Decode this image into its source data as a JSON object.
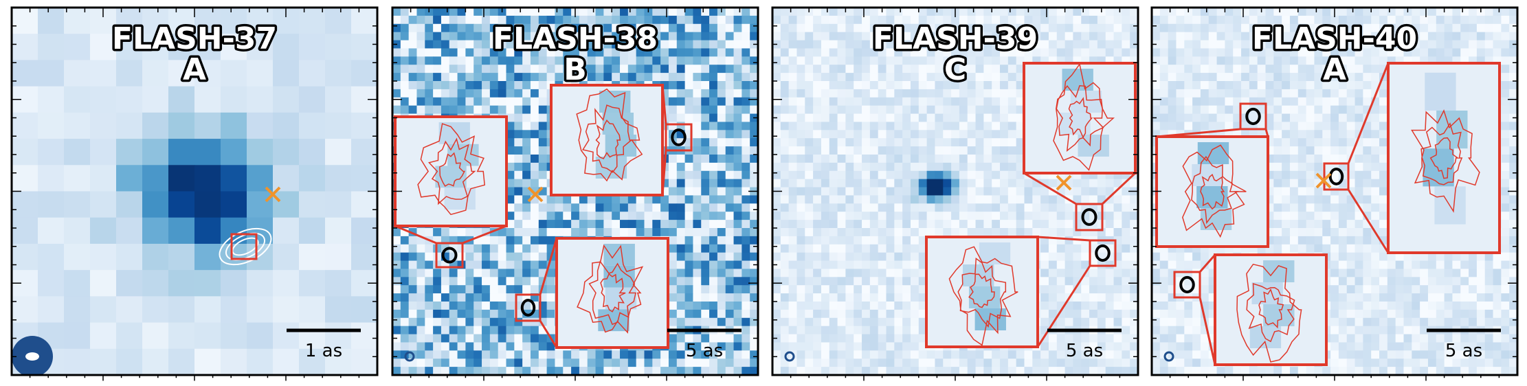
{
  "panels": [
    {
      "title": "FLASH-37",
      "label": "A",
      "scale_bar": "1 as"
    },
    {
      "title": "FLASH-38",
      "label": "B",
      "scale_bar": "5 as"
    },
    {
      "title": "FLASH-39",
      "label": "C",
      "scale_bar": "5 as"
    },
    {
      "title": "FLASH-40",
      "label": "A",
      "scale_bar": "5 as"
    }
  ]
}
